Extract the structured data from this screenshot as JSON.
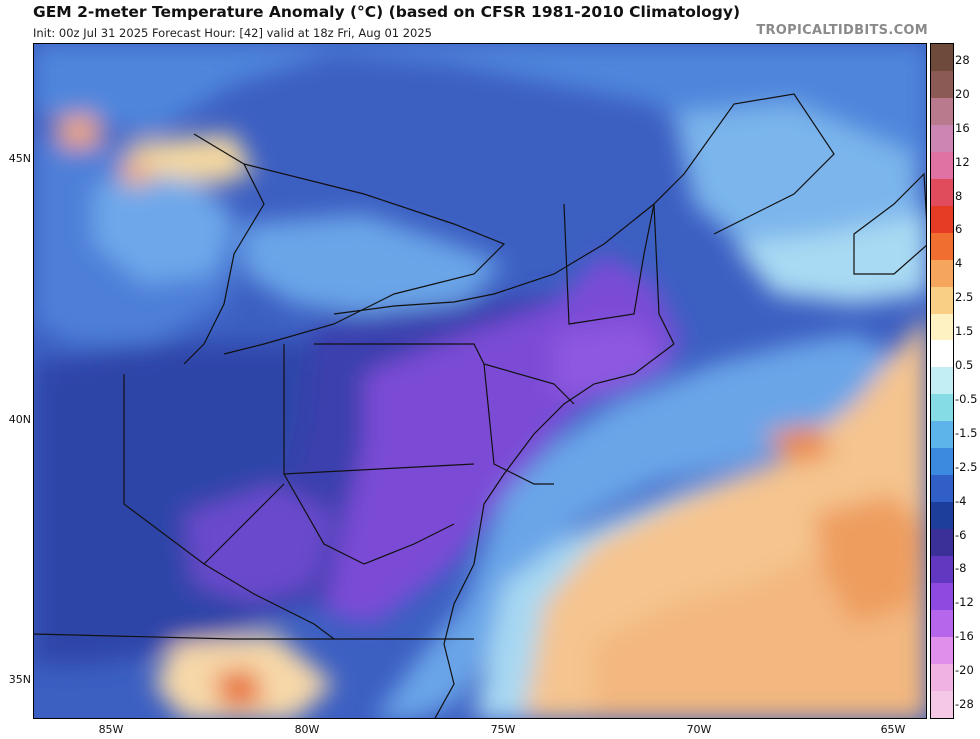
{
  "header": {
    "title": "GEM 2-meter Temperature Anomaly (°C) (based on CFSR 1981-2010 Climatology)",
    "subtitle": "Init: 00z Jul 31 2025   Forecast Hour: [42]   valid at 18z Fri, Aug 01 2025",
    "credit": "TROPICALTIDBITS.COM"
  },
  "map": {
    "lat_labels": [
      "45N",
      "40N",
      "35N"
    ],
    "lon_labels": [
      "85W",
      "80W",
      "75W",
      "70W",
      "65W"
    ],
    "colors": {
      "ocean_warm": "#f5c48f",
      "ocean_warm_dark": "#ee9d5e",
      "anomaly_cold": "#3c5fc2",
      "anomaly_colder": "#2f45a8",
      "anomaly_coldest": "#7b4bd6",
      "anomaly_cool": "#6aa5e8",
      "anomaly_mild": "#a7d8f2",
      "near_zero": "#ffffff",
      "borders": "#111111"
    }
  },
  "colorbar": {
    "labels": [
      "28",
      "20",
      "16",
      "12",
      "8",
      "6",
      "4",
      "2.5",
      "1.5",
      "0.5",
      "-0.5",
      "-1.5",
      "-2.5",
      "-4",
      "-6",
      "-8",
      "-12",
      "-16",
      "-20",
      "-28"
    ],
    "colors": [
      "#6d4a3a",
      "#8b5a55",
      "#b87a8c",
      "#cc86b4",
      "#e071a3",
      "#e04c5c",
      "#e63b24",
      "#f06e2f",
      "#f6a55c",
      "#f9cf86",
      "#fff2c2",
      "#ffffff",
      "#c3eef3",
      "#86dce5",
      "#5cb4ea",
      "#3c8ae0",
      "#2f5fc7",
      "#1e3e9c",
      "#3b2f98",
      "#6238c0",
      "#8e49e0",
      "#b566ea",
      "#e090ea",
      "#f0b2e0",
      "#f5c8e8"
    ]
  }
}
